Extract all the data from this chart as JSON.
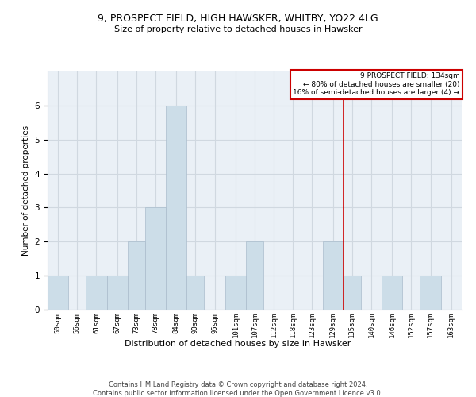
{
  "title": "9, PROSPECT FIELD, HIGH HAWSKER, WHITBY, YO22 4LG",
  "subtitle": "Size of property relative to detached houses in Hawsker",
  "xlabel": "Distribution of detached houses by size in Hawsker",
  "ylabel": "Number of detached properties",
  "bar_color": "#ccdde8",
  "bar_edgecolor": "#aabccc",
  "categories": [
    "50sqm",
    "56sqm",
    "61sqm",
    "67sqm",
    "73sqm",
    "78sqm",
    "84sqm",
    "90sqm",
    "95sqm",
    "101sqm",
    "107sqm",
    "112sqm",
    "118sqm",
    "123sqm",
    "129sqm",
    "135sqm",
    "140sqm",
    "146sqm",
    "152sqm",
    "157sqm",
    "163sqm"
  ],
  "values": [
    1,
    0,
    1,
    1,
    2,
    3,
    6,
    1,
    0,
    1,
    2,
    0,
    0,
    0,
    2,
    1,
    0,
    1,
    0,
    1,
    0
  ],
  "ylim": [
    0,
    7
  ],
  "yticks": [
    0,
    1,
    2,
    3,
    4,
    5,
    6
  ],
  "marker_label": "9 PROSPECT FIELD: 134sqm",
  "annotation_line1": "← 80% of detached houses are smaller (20)",
  "annotation_line2": "16% of semi-detached houses are larger (4) →",
  "footer1": "Contains HM Land Registry data © Crown copyright and database right 2024.",
  "footer2": "Contains public sector information licensed under the Open Government Licence v3.0.",
  "bin_edges": [
    50,
    56,
    61,
    67,
    73,
    78,
    84,
    90,
    95,
    101,
    107,
    112,
    118,
    123,
    129,
    135,
    140,
    146,
    152,
    157,
    163,
    169
  ],
  "red_line_x": 135,
  "red_line_color": "#cc0000",
  "grid_color": "#d0d8e0",
  "background_color": "#eaf0f6"
}
